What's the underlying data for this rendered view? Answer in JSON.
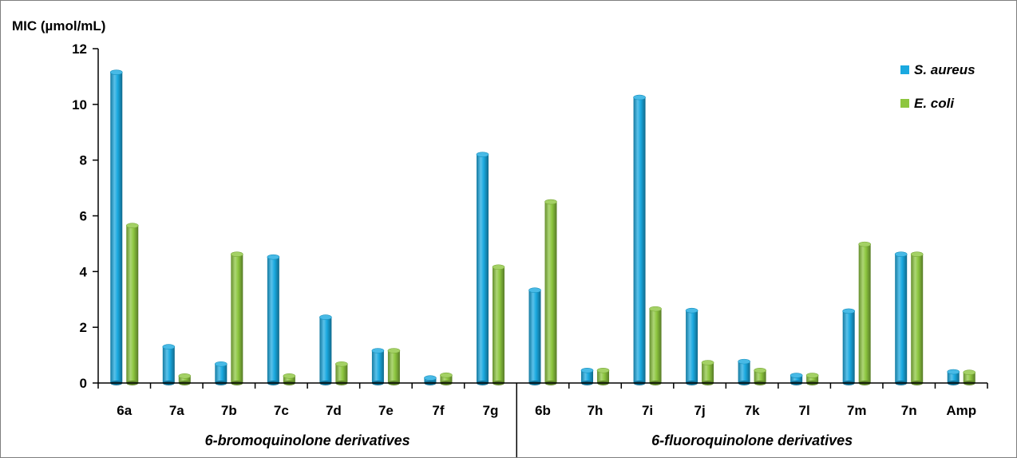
{
  "chart_data": {
    "type": "bar",
    "ylabel": "MIC (µmol/mL)",
    "ylim": [
      0,
      12
    ],
    "yticks": [
      "0",
      "2",
      "4",
      "6",
      "8",
      "10",
      "12"
    ],
    "grid": false,
    "legend_position": "top-right",
    "categories": [
      "6a",
      "7a",
      "7b",
      "7c",
      "7d",
      "7e",
      "7f",
      "7g",
      "6b",
      "7h",
      "7i",
      "7j",
      "7k",
      "7l",
      "7m",
      "7n",
      "Amp"
    ],
    "series": [
      {
        "name": "S. aureus",
        "color": "#1aa9e0",
        "values": [
          11.15,
          1.3,
          0.68,
          4.52,
          2.36,
          1.16,
          0.18,
          8.2,
          3.33,
          0.45,
          10.25,
          2.6,
          0.77,
          0.27,
          2.58,
          4.62,
          0.4
        ]
      },
      {
        "name": "E. coli",
        "color": "#8dc63f",
        "values": [
          5.65,
          0.25,
          4.62,
          0.25,
          0.68,
          1.16,
          0.28,
          4.16,
          6.5,
          0.45,
          2.66,
          0.73,
          0.45,
          0.27,
          4.98,
          4.62,
          0.38
        ]
      }
    ],
    "groups": [
      {
        "label": "6-bromoquinolone derivatives",
        "categories": [
          "6a",
          "7a",
          "7b",
          "7c",
          "7d",
          "7e",
          "7f",
          "7g"
        ]
      },
      {
        "label": "6-fluoroquinolone derivatives",
        "categories": [
          "6b",
          "7h",
          "7i",
          "7j",
          "7k",
          "7l",
          "7m",
          "7n",
          "Amp"
        ]
      }
    ]
  }
}
